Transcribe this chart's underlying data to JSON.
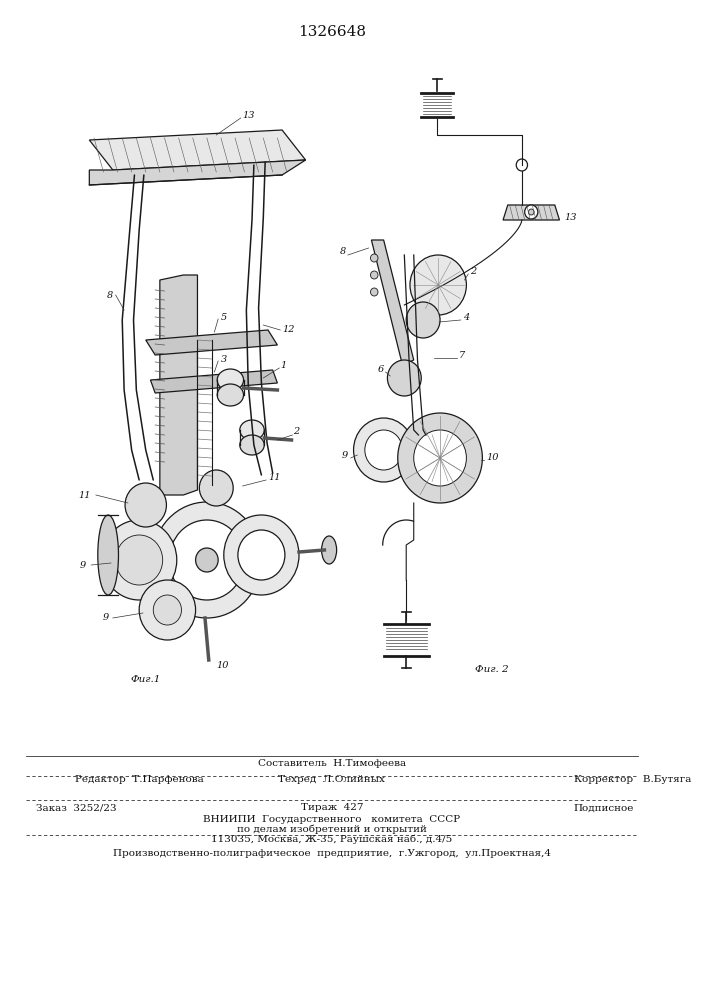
{
  "patent_number": "1326648",
  "bg_color": "#ffffff",
  "title_fontsize": 11,
  "title_color": "#111111",
  "fss": 7.0,
  "lw": 0.9,
  "fig1_label": "Фиг.1",
  "fig2_label": "Фиг. 2",
  "bottom": {
    "editor_line": "Редактор  Т.Парфенова",
    "sostavitel_line": "Составитель  Н.Тимофеева",
    "tehred_line": "Техред  Л.Олийных",
    "korrektor_line": "Корректор   В.Бутяга",
    "zakaz_line": "Заказ  3252/23",
    "tirazh_line": "Тираж  427",
    "podpisnoe_line": "Подписное",
    "vniiipi_line": "ВНИИПИ  Государственного   комитета  СССР",
    "podelam_line": "по делам изобретений и открытий",
    "address_line": "113035, Москва, Ж-35, Раушская наб., д.4/5",
    "production_line": "Производственно-полиграфическое  предприятие,  г.Ужгород,  ул.Проектная,4"
  }
}
